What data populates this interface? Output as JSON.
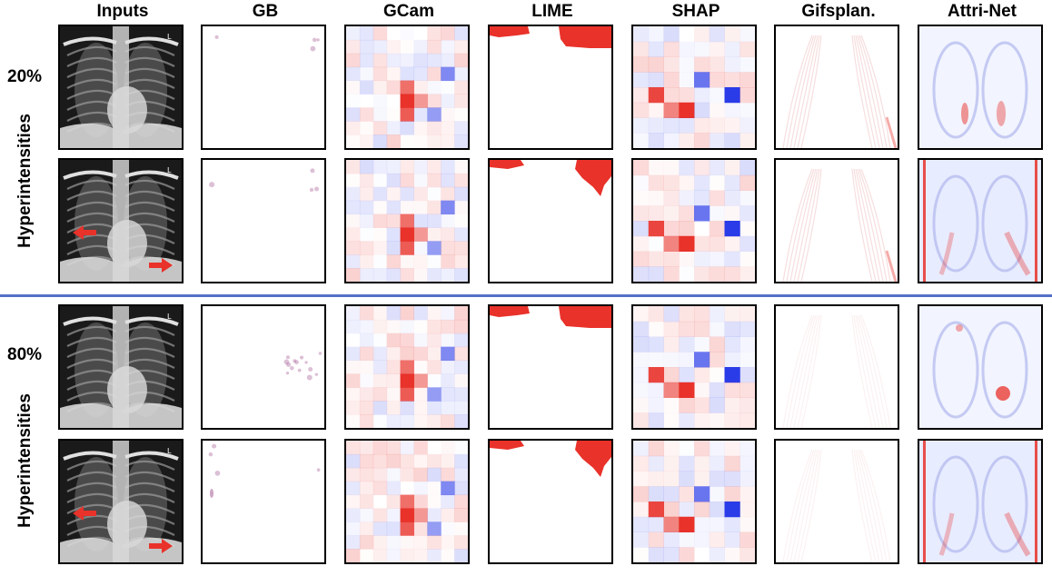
{
  "headers": [
    "Inputs",
    "GB",
    "GCam",
    "LIME",
    "SHAP",
    "Gifsplan.",
    "Attri-Net"
  ],
  "groups": [
    {
      "percent": "20%",
      "label": "Hyperintensities"
    },
    {
      "percent": "80%",
      "label": "Hyperintensities"
    }
  ],
  "colors": {
    "divider": "#5470c6",
    "positive": "#e8322a",
    "negative": "#2a3be8"
  }
}
